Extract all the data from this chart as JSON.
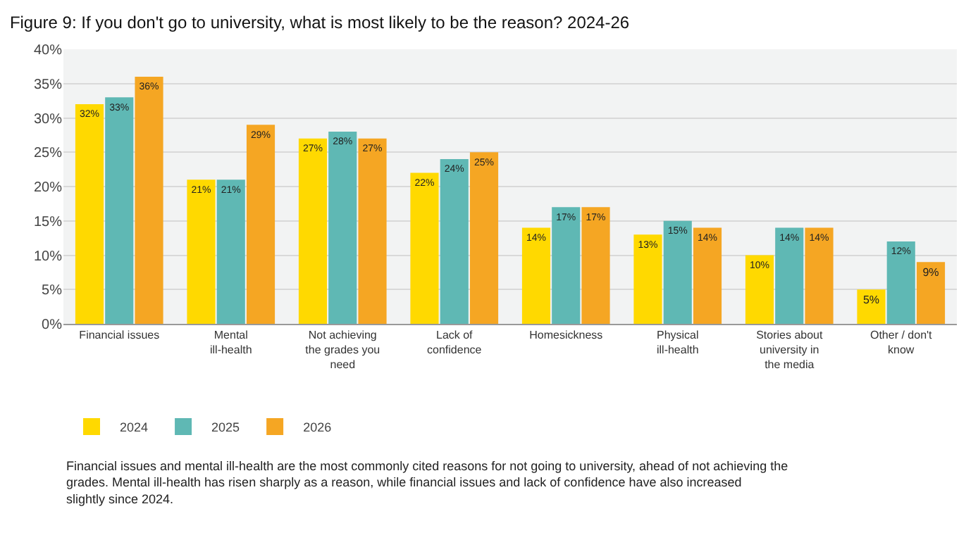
{
  "chart_data": {
    "type": "bar",
    "title": "Figure 9: If you don't go to university, what is most likely to be the reason? 2024-26",
    "categories": [
      "Financial issues",
      "Mental ill-health",
      "Not achieving the grades you need",
      "Lack of confidence",
      "Homesickness",
      "Physical ill-health",
      "Stories about university in the media",
      "Other / don't know"
    ],
    "series": [
      {
        "name": "2024",
        "color": "#ffd900",
        "values": [
          32,
          21,
          27,
          22,
          14,
          13,
          10,
          5
        ],
        "value_labels": [
          "32%",
          "21%",
          "27%",
          "22%",
          "14%",
          "13%",
          "10%",
          "5%"
        ]
      },
      {
        "name": "2025",
        "color": "#5fb8b4",
        "values": [
          33,
          21,
          28,
          24,
          17,
          15,
          14,
          12
        ],
        "value_labels": [
          "33%",
          "21%",
          "28%",
          "24%",
          "17%",
          "15%",
          "14%",
          "12%"
        ]
      },
      {
        "name": "2026",
        "color": "#f5a623",
        "values": [
          36,
          29,
          27,
          25,
          17,
          14,
          14,
          9
        ],
        "value_labels": [
          "36%",
          "29%",
          "27%",
          "25%",
          "17%",
          "14%",
          "14%",
          "9%"
        ]
      }
    ],
    "ylim": [
      0,
      40
    ],
    "yticks": [
      {
        "value": 0,
        "label": "0%"
      },
      {
        "value": 5,
        "label": "5%"
      },
      {
        "value": 10,
        "label": "10%"
      },
      {
        "value": 15,
        "label": "15%"
      },
      {
        "value": 20,
        "label": "20%"
      },
      {
        "value": 25,
        "label": "25%"
      },
      {
        "value": 30,
        "label": "30%"
      },
      {
        "value": 35,
        "label": "35%"
      },
      {
        "value": 40,
        "label": "40%"
      }
    ],
    "grid": "y",
    "legend": "bottom left",
    "annotations": [
      "Financial issues and mental ill-health are the most commonly cited reasons for not going to university, ahead of not achieving the grades. Mental ill-health has risen sharply as a reason, while financial issues and lack of confidence have also increased slightly since 2024."
    ]
  }
}
